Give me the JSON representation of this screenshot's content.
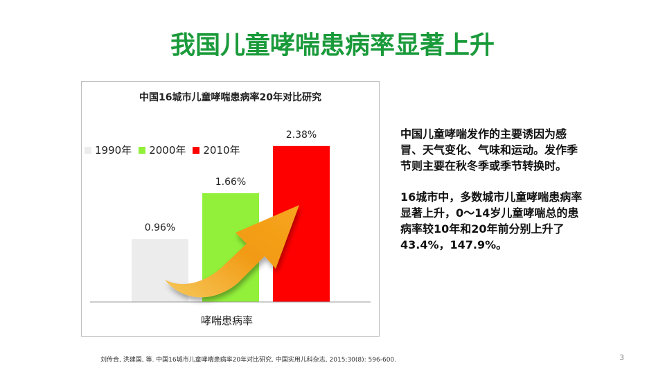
{
  "slide": {
    "title": "我国儿童哮喘患病率显著上升",
    "paragraph1": "中国儿童哮喘发作的主要诱因为感冒、天气变化、气味和运动。发作季节则主要在秋冬季或季节转换时。",
    "paragraph2": "16城市中，多数城市儿童哮喘患病率显著上升，0～14岁儿童哮喘总的患病率较10年和20年前分别上升了43.4%，147.9%。",
    "citation": "刘传合, 洪建国, 等. 中国16城市儿童哮喘患病率20年对比研究. 中国实用儿科杂志, 2015;30(8): 596-600.",
    "page_number": "3"
  },
  "chart_data": {
    "type": "bar",
    "title": "中国16城市儿童哮喘患病率20年对比研究",
    "categories": [
      "哮喘患病率"
    ],
    "series": [
      {
        "name": "1990年",
        "values": [
          0.96
        ],
        "label": "0.96%",
        "color": "#ececec"
      },
      {
        "name": "2000年",
        "values": [
          1.66
        ],
        "label": "1.66%",
        "color": "#92f03a"
      },
      {
        "name": "2010年",
        "values": [
          2.38
        ],
        "label": "2.38%",
        "color": "#ff0000"
      }
    ],
    "xlabel": "哮喘患病率",
    "ylabel": "",
    "ylim": [
      0,
      2.6
    ],
    "legend_position": "top-left",
    "grid": false,
    "arrow_color": "#f5a623"
  }
}
